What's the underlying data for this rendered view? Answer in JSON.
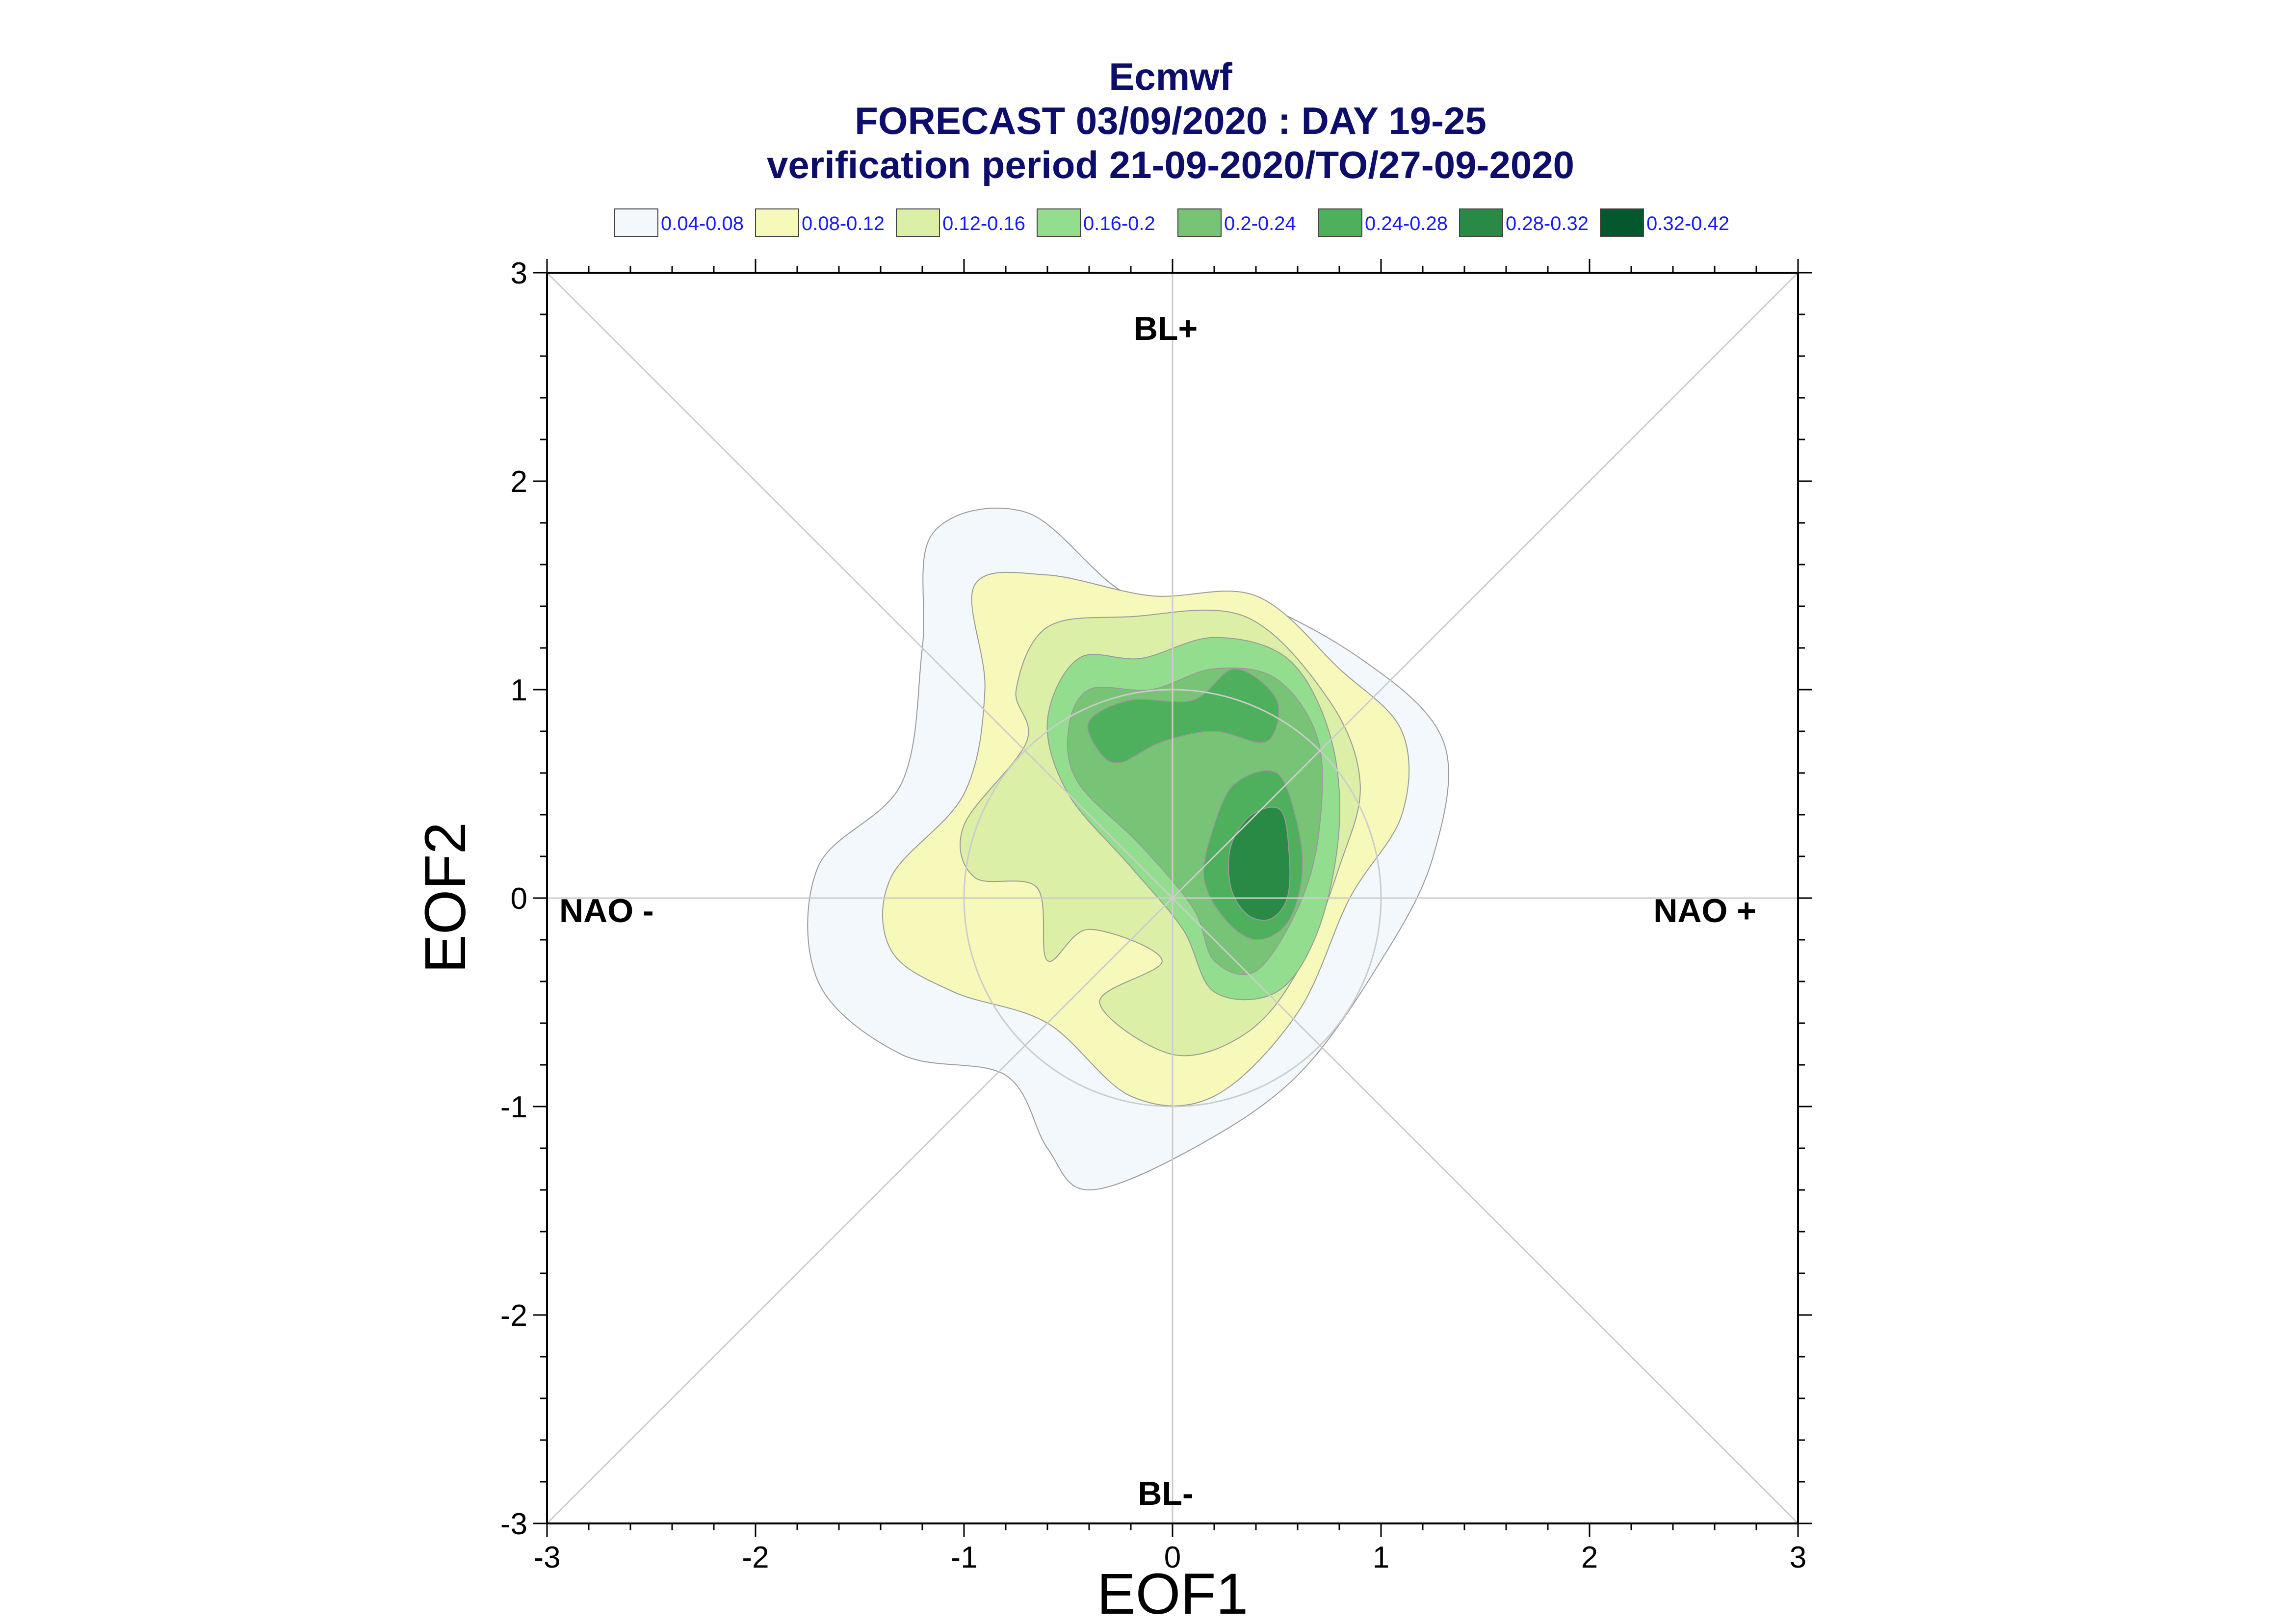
{
  "chart_data": {
    "type": "contour",
    "title": "Ecmwf",
    "subtitle_lines": [
      "FORECAST 03/09/2020 : DAY 19-25",
      "verification period 21-09-2020/TO/27-09-2020"
    ],
    "xlabel": "EOF1",
    "ylabel": "EOF2",
    "xlim": [
      -3,
      3
    ],
    "ylim": [
      -3,
      3
    ],
    "x_ticks": [
      "-3",
      "-2",
      "-1",
      "0",
      "1",
      "2",
      "3"
    ],
    "y_ticks": [
      "3",
      "2",
      "1",
      "0",
      "-1",
      "-2",
      "-3"
    ],
    "regime_labels": {
      "top": "BL+",
      "bottom": "BL-",
      "left": "NAO -",
      "right": "NAO +"
    },
    "reference_circle_radius": 1.0,
    "legend": [
      {
        "label": "0.04-0.08",
        "color": "#f3f8fc"
      },
      {
        "label": "0.08-0.12",
        "color": "#f6f9b9"
      },
      {
        "label": "0.12-0.16",
        "color": "#dcefa6"
      },
      {
        "label": "0.16-0.2",
        "color": "#93de8e"
      },
      {
        "label": "0.2-0.24",
        "color": "#78c477"
      },
      {
        "label": "0.24-0.28",
        "color": "#4eaf5d"
      },
      {
        "label": "0.28-0.32",
        "color": "#298a45"
      },
      {
        "label": "0.32-0.42",
        "color": "#05582e"
      }
    ],
    "contours": [
      {
        "level": "0.04-0.08",
        "color": "#f3f8fc",
        "points": [
          [
            -1.15,
            1.75
          ],
          [
            -0.7,
            1.85
          ],
          [
            -0.2,
            1.45
          ],
          [
            0.3,
            1.45
          ],
          [
            0.9,
            1.15
          ],
          [
            1.3,
            0.75
          ],
          [
            1.25,
            0.2
          ],
          [
            1.0,
            -0.3
          ],
          [
            0.6,
            -0.85
          ],
          [
            0.1,
            -1.2
          ],
          [
            -0.4,
            -1.4
          ],
          [
            -0.6,
            -1.2
          ],
          [
            -0.8,
            -0.85
          ],
          [
            -1.3,
            -0.75
          ],
          [
            -1.7,
            -0.4
          ],
          [
            -1.7,
            0.15
          ],
          [
            -1.3,
            0.55
          ],
          [
            -1.2,
            1.2
          ]
        ]
      },
      {
        "level": "0.08-0.12",
        "color": "#f6f9b9",
        "points": [
          [
            -0.95,
            1.5
          ],
          [
            -0.6,
            1.55
          ],
          [
            -0.1,
            1.45
          ],
          [
            0.4,
            1.45
          ],
          [
            0.8,
            1.1
          ],
          [
            1.1,
            0.8
          ],
          [
            1.1,
            0.4
          ],
          [
            0.85,
            0.0
          ],
          [
            0.6,
            -0.55
          ],
          [
            0.2,
            -0.95
          ],
          [
            -0.2,
            -0.95
          ],
          [
            -0.6,
            -0.6
          ],
          [
            -1.05,
            -0.45
          ],
          [
            -1.35,
            -0.25
          ],
          [
            -1.35,
            0.1
          ],
          [
            -1.0,
            0.5
          ],
          [
            -0.9,
            1.0
          ]
        ]
      },
      {
        "level": "0.12-0.16",
        "color": "#dcefa6",
        "points": [
          [
            -0.6,
            1.3
          ],
          [
            -0.2,
            1.35
          ],
          [
            0.35,
            1.35
          ],
          [
            0.75,
            0.95
          ],
          [
            0.9,
            0.55
          ],
          [
            0.8,
            0.15
          ],
          [
            0.6,
            -0.35
          ],
          [
            0.35,
            -0.65
          ],
          [
            0.0,
            -0.75
          ],
          [
            -0.35,
            -0.5
          ],
          [
            -0.05,
            -0.3
          ],
          [
            -0.4,
            -0.15
          ],
          [
            -0.6,
            -0.3
          ],
          [
            -0.65,
            0.05
          ],
          [
            -0.95,
            0.1
          ],
          [
            -1.0,
            0.35
          ],
          [
            -0.7,
            0.75
          ],
          [
            -0.75,
            1.0
          ]
        ]
      },
      {
        "level": "0.16-0.2",
        "color": "#93de8e",
        "points": [
          [
            -0.45,
            1.15
          ],
          [
            -0.15,
            1.15
          ],
          [
            0.2,
            1.25
          ],
          [
            0.55,
            1.15
          ],
          [
            0.75,
            0.8
          ],
          [
            0.8,
            0.35
          ],
          [
            0.7,
            -0.15
          ],
          [
            0.5,
            -0.45
          ],
          [
            0.2,
            -0.45
          ],
          [
            0.05,
            -0.15
          ],
          [
            -0.2,
            0.15
          ],
          [
            -0.5,
            0.5
          ],
          [
            -0.6,
            0.85
          ]
        ]
      },
      {
        "level": "0.2-0.24",
        "color": "#78c477",
        "points": [
          [
            -0.4,
            1.0
          ],
          [
            -0.1,
            1.0
          ],
          [
            0.2,
            1.1
          ],
          [
            0.5,
            1.05
          ],
          [
            0.7,
            0.75
          ],
          [
            0.7,
            0.3
          ],
          [
            0.6,
            -0.05
          ],
          [
            0.4,
            -0.35
          ],
          [
            0.2,
            -0.3
          ],
          [
            0.1,
            -0.05
          ],
          [
            -0.15,
            0.25
          ],
          [
            -0.45,
            0.55
          ],
          [
            -0.5,
            0.8
          ]
        ]
      },
      {
        "level": "0.24-0.28",
        "color": "#4eaf5d",
        "points": [
          [
            -0.4,
            0.85
          ],
          [
            -0.2,
            0.95
          ],
          [
            0.1,
            0.95
          ],
          [
            0.3,
            1.1
          ],
          [
            0.5,
            0.95
          ],
          [
            0.45,
            0.75
          ],
          [
            0.2,
            0.8
          ],
          [
            -0.05,
            0.75
          ],
          [
            -0.25,
            0.65
          ],
          [
            -0.35,
            0.7
          ]
        ]
      },
      {
        "level": "0.24-0.28",
        "color": "#4eaf5d",
        "points": [
          [
            0.3,
            0.55
          ],
          [
            0.5,
            0.6
          ],
          [
            0.6,
            0.35
          ],
          [
            0.62,
            0.1
          ],
          [
            0.55,
            -0.12
          ],
          [
            0.4,
            -0.2
          ],
          [
            0.25,
            -0.1
          ],
          [
            0.15,
            0.1
          ],
          [
            0.2,
            0.35
          ]
        ]
      },
      {
        "level": "0.28-0.32",
        "color": "#298a45",
        "points": [
          [
            0.38,
            0.4
          ],
          [
            0.52,
            0.42
          ],
          [
            0.56,
            0.2
          ],
          [
            0.55,
            0.0
          ],
          [
            0.47,
            -0.1
          ],
          [
            0.36,
            -0.08
          ],
          [
            0.28,
            0.05
          ],
          [
            0.28,
            0.25
          ]
        ]
      }
    ]
  }
}
